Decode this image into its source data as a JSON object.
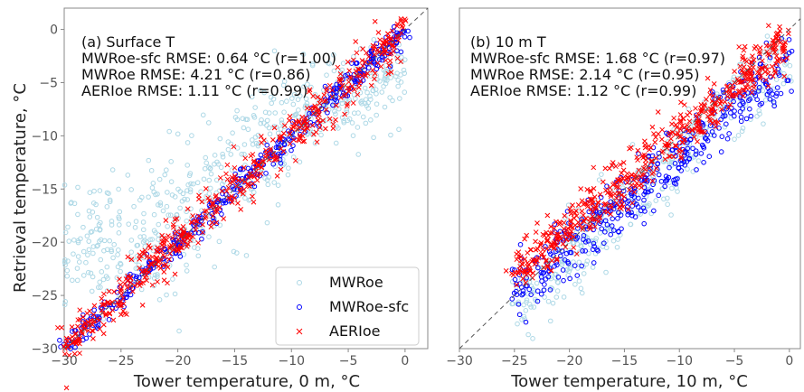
{
  "figure": {
    "ylabel": "Retrieval temperature, °C",
    "legend": {
      "placement": "lower-right of left panel",
      "entries": [
        {
          "label": "MWRoe",
          "marker": "open-circle",
          "color": "#add8e6"
        },
        {
          "label": "MWRoe-sfc",
          "marker": "open-circle",
          "color": "#0000ff"
        },
        {
          "label": "AERIoe",
          "marker": "x",
          "color": "#ff0000"
        }
      ]
    },
    "colors": {
      "mwroe": "#add8e6",
      "mwroe_sfc": "#0000ff",
      "aerioe": "#ff0000",
      "one_to_one": "#555555",
      "axis_text": "#555555",
      "label_text": "#222222"
    }
  },
  "chart_data": [
    {
      "type": "scatter",
      "panel": "a",
      "title": "(a) Surface T",
      "xlabel": "Tower temperature, 0 m, °C",
      "ylabel": "Retrieval temperature, °C",
      "xlim": [
        -30,
        2
      ],
      "ylim": [
        -30,
        2
      ],
      "xticks": [
        -30,
        -25,
        -20,
        -15,
        -10,
        -5,
        0
      ],
      "yticks": [
        -30,
        -25,
        -20,
        -15,
        -10,
        -5,
        0
      ],
      "grid": false,
      "reference_line": "1:1 dashed",
      "stats_annotations": [
        "MWRoe-sfc RMSE: 0.64 °C (r=1.00)",
        "MWRoe RMSE: 4.21 °C (r=0.86)",
        "AERIoe RMSE: 1.11 °C (r=0.99)"
      ],
      "series": [
        {
          "name": "MWRoe",
          "clusters": [
            {
              "x": [
                -30,
                -20
              ],
              "y_center": [
                -21,
                -18
              ],
              "spread": 3
            },
            {
              "x": [
                -20,
                -10
              ],
              "y_center": [
                -18,
                -9
              ],
              "spread": 3
            },
            {
              "x": [
                -10,
                0
              ],
              "y_center": [
                -9,
                -4
              ],
              "spread": 2
            }
          ]
        },
        {
          "name": "MWRoe-sfc",
          "x": [
            -30,
            0
          ],
          "y": [
            -30,
            0
          ],
          "spread": 0.6
        },
        {
          "name": "AERIoe",
          "x": [
            -30,
            0
          ],
          "y": [
            -30,
            0
          ],
          "spread": 1.1
        }
      ]
    },
    {
      "type": "scatter",
      "panel": "b",
      "title": "(b) 10 m T",
      "xlabel": "Tower temperature, 10 m, °C",
      "ylabel": "",
      "xlim": [
        -30,
        1
      ],
      "ylim": [
        -30,
        2
      ],
      "xticks": [
        -30,
        -25,
        -20,
        -15,
        -10,
        -5,
        0
      ],
      "yticks": [],
      "grid": false,
      "reference_line": "1:1 dashed",
      "stats_annotations": [
        "MWRoe-sfc RMSE: 1.68 °C (r=0.97)",
        "MWRoe RMSE: 2.14 °C (r=0.95)",
        "AERIoe RMSE: 1.12 °C (r=0.99)"
      ],
      "series": [
        {
          "name": "MWRoe",
          "x": [
            -25,
            0
          ],
          "y": [
            -26,
            -2
          ],
          "spread": 1.8
        },
        {
          "name": "MWRoe-sfc",
          "x": [
            -25,
            0
          ],
          "y": [
            -25,
            -3
          ],
          "spread": 1.5
        },
        {
          "name": "AERIoe",
          "x": [
            -25,
            0
          ],
          "y": [
            -23,
            -1
          ],
          "spread": 1.1
        }
      ]
    }
  ]
}
